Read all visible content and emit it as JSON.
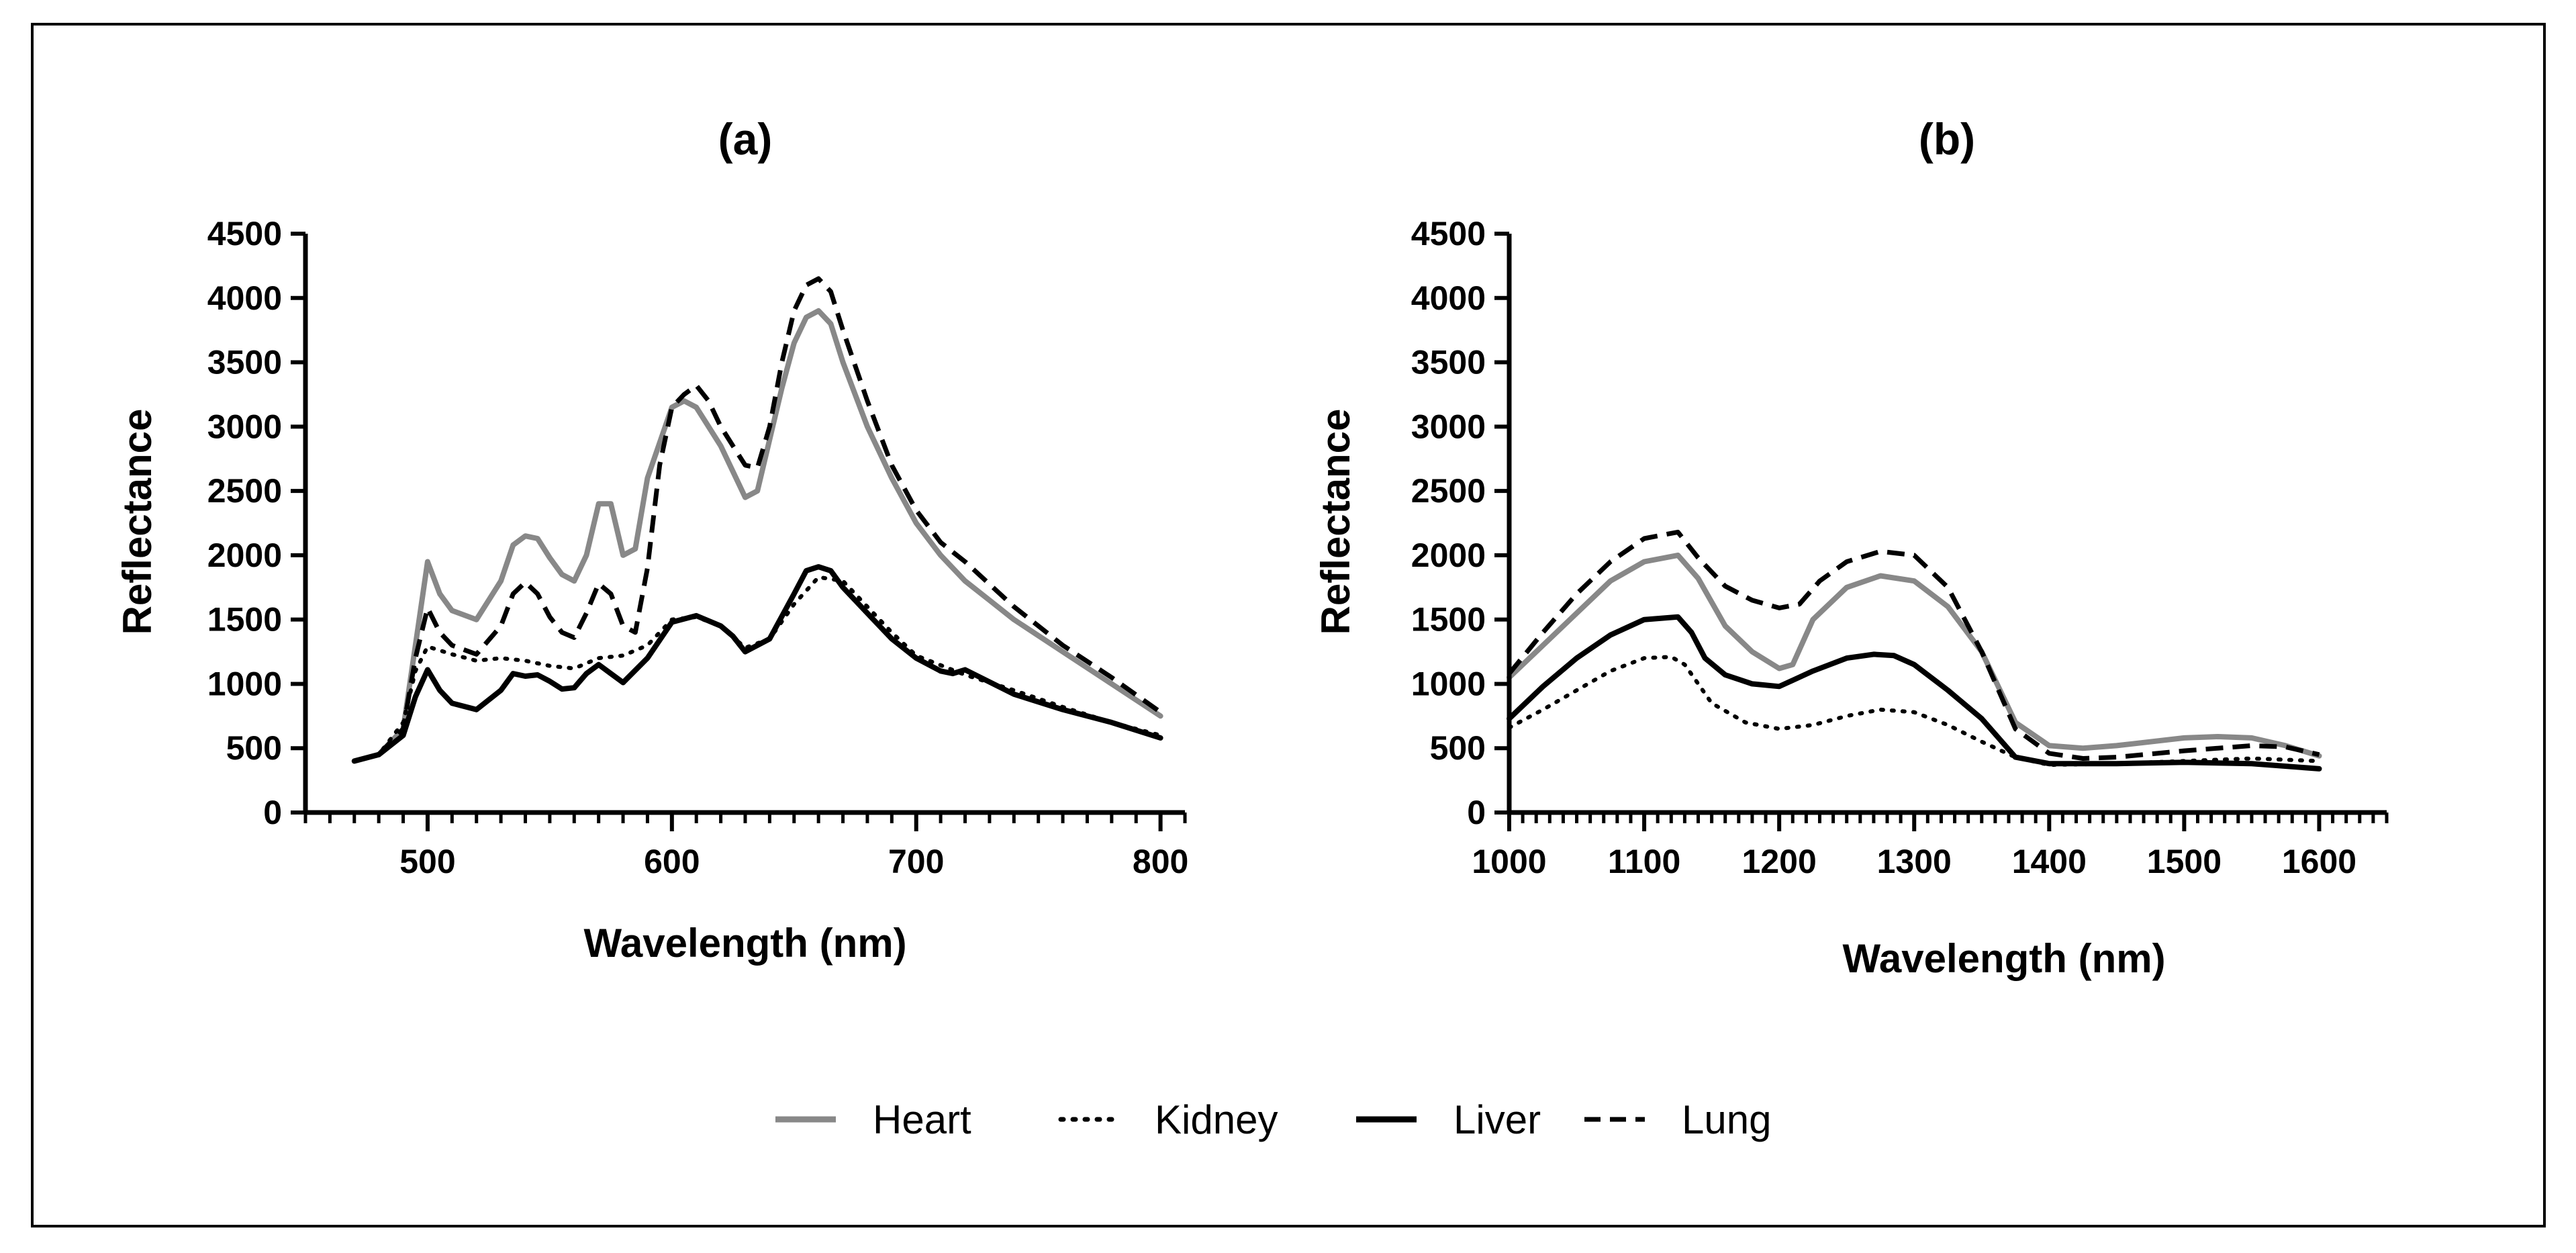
{
  "chart_data": [
    {
      "type": "line",
      "title": "(a)",
      "xlabel": "Wavelength (nm)",
      "ylabel": "Reflectance",
      "xlim": [
        450,
        810
      ],
      "ylim": [
        0,
        4500
      ],
      "xticks": [
        500,
        600,
        700,
        800
      ],
      "yticks": [
        0,
        500,
        1000,
        1500,
        2000,
        2500,
        3000,
        3500,
        4000,
        4500
      ],
      "grid": false,
      "series": [
        {
          "name": "Heart",
          "x": [
            470,
            480,
            490,
            495,
            500,
            505,
            510,
            520,
            530,
            535,
            540,
            545,
            550,
            555,
            560,
            565,
            570,
            575,
            580,
            585,
            590,
            600,
            605,
            610,
            615,
            620,
            625,
            630,
            635,
            640,
            645,
            650,
            655,
            660,
            665,
            670,
            680,
            690,
            700,
            710,
            720,
            730,
            740,
            760,
            780,
            800
          ],
          "y": [
            400,
            450,
            650,
            1300,
            1950,
            1700,
            1570,
            1500,
            1800,
            2080,
            2150,
            2130,
            1980,
            1850,
            1800,
            2000,
            2400,
            2400,
            2000,
            2050,
            2600,
            3150,
            3200,
            3150,
            3000,
            2850,
            2650,
            2450,
            2500,
            2900,
            3300,
            3650,
            3850,
            3900,
            3800,
            3500,
            3000,
            2600,
            2250,
            2000,
            1800,
            1650,
            1500,
            1250,
            1000,
            750
          ]
        },
        {
          "name": "Kidney",
          "x": [
            470,
            480,
            490,
            495,
            500,
            510,
            520,
            530,
            540,
            550,
            560,
            570,
            580,
            590,
            600,
            610,
            620,
            630,
            640,
            650,
            660,
            670,
            680,
            690,
            700,
            720,
            740,
            760,
            780,
            800
          ],
          "y": [
            400,
            450,
            700,
            1100,
            1290,
            1230,
            1180,
            1200,
            1180,
            1140,
            1120,
            1200,
            1220,
            1300,
            1500,
            1520,
            1450,
            1280,
            1350,
            1620,
            1830,
            1800,
            1600,
            1400,
            1220,
            1070,
            950,
            820,
            700,
            600
          ]
        },
        {
          "name": "Liver",
          "x": [
            470,
            480,
            490,
            495,
            500,
            505,
            510,
            520,
            530,
            535,
            540,
            545,
            550,
            555,
            560,
            565,
            570,
            575,
            580,
            590,
            600,
            610,
            620,
            625,
            630,
            640,
            650,
            655,
            660,
            665,
            670,
            680,
            690,
            700,
            710,
            715,
            720,
            740,
            760,
            780,
            800
          ],
          "y": [
            400,
            450,
            600,
            900,
            1110,
            950,
            850,
            800,
            950,
            1080,
            1060,
            1070,
            1020,
            960,
            970,
            1080,
            1150,
            1080,
            1010,
            1200,
            1480,
            1530,
            1450,
            1370,
            1250,
            1350,
            1700,
            1880,
            1910,
            1880,
            1750,
            1550,
            1350,
            1200,
            1100,
            1080,
            1110,
            920,
            800,
            700,
            580
          ]
        },
        {
          "name": "Lung",
          "x": [
            470,
            480,
            490,
            495,
            500,
            505,
            510,
            520,
            530,
            535,
            540,
            545,
            550,
            555,
            560,
            565,
            570,
            575,
            580,
            585,
            590,
            595,
            600,
            605,
            610,
            615,
            620,
            625,
            630,
            635,
            640,
            645,
            650,
            655,
            660,
            665,
            670,
            680,
            690,
            700,
            710,
            720,
            740,
            760,
            780,
            800
          ],
          "y": [
            400,
            450,
            650,
            1200,
            1590,
            1400,
            1300,
            1230,
            1450,
            1700,
            1790,
            1700,
            1520,
            1400,
            1360,
            1550,
            1780,
            1700,
            1450,
            1400,
            1900,
            2700,
            3150,
            3250,
            3320,
            3200,
            3000,
            2850,
            2700,
            2680,
            3000,
            3500,
            3900,
            4100,
            4150,
            4050,
            3750,
            3200,
            2700,
            2350,
            2100,
            1950,
            1600,
            1300,
            1050,
            780
          ]
        }
      ]
    },
    {
      "type": "line",
      "title": "(b)",
      "xlabel": "Wavelength (nm)",
      "ylabel": "Reflectance",
      "xlim": [
        1000,
        1650
      ],
      "ylim": [
        0,
        4500
      ],
      "xticks": [
        1000,
        1100,
        1200,
        1300,
        1400,
        1500,
        1600
      ],
      "yticks": [
        0,
        500,
        1000,
        1500,
        2000,
        2500,
        3000,
        3500,
        4000,
        4500
      ],
      "grid": false,
      "series": [
        {
          "name": "Heart",
          "x": [
            1000,
            1025,
            1050,
            1075,
            1100,
            1125,
            1140,
            1160,
            1180,
            1200,
            1210,
            1225,
            1250,
            1275,
            1300,
            1325,
            1350,
            1375,
            1400,
            1425,
            1450,
            1500,
            1525,
            1550,
            1575,
            1600
          ],
          "y": [
            1050,
            1300,
            1550,
            1800,
            1950,
            2000,
            1820,
            1450,
            1250,
            1120,
            1150,
            1500,
            1750,
            1840,
            1800,
            1600,
            1250,
            700,
            520,
            500,
            520,
            580,
            590,
            580,
            520,
            440
          ]
        },
        {
          "name": "Kidney",
          "x": [
            1000,
            1025,
            1050,
            1075,
            1100,
            1120,
            1130,
            1140,
            1150,
            1175,
            1200,
            1225,
            1250,
            1275,
            1300,
            1325,
            1350,
            1375,
            1400,
            1450,
            1500,
            1550,
            1600
          ],
          "y": [
            660,
            800,
            950,
            1100,
            1200,
            1210,
            1150,
            1000,
            850,
            700,
            650,
            680,
            750,
            800,
            780,
            680,
            550,
            430,
            370,
            380,
            400,
            420,
            400
          ]
        },
        {
          "name": "Liver",
          "x": [
            1000,
            1025,
            1050,
            1075,
            1100,
            1125,
            1135,
            1145,
            1160,
            1180,
            1200,
            1225,
            1250,
            1270,
            1285,
            1300,
            1325,
            1350,
            1375,
            1400,
            1450,
            1500,
            1550,
            1600
          ],
          "y": [
            730,
            980,
            1200,
            1380,
            1500,
            1520,
            1400,
            1200,
            1070,
            1000,
            980,
            1100,
            1200,
            1230,
            1220,
            1150,
            950,
            730,
            430,
            380,
            380,
            390,
            380,
            340
          ]
        },
        {
          "name": "Lung",
          "x": [
            1000,
            1025,
            1050,
            1075,
            1100,
            1125,
            1140,
            1160,
            1180,
            1200,
            1215,
            1230,
            1250,
            1275,
            1300,
            1325,
            1350,
            1375,
            1400,
            1425,
            1450,
            1500,
            1550,
            1575,
            1600
          ],
          "y": [
            1080,
            1400,
            1700,
            1950,
            2130,
            2180,
            1980,
            1760,
            1650,
            1590,
            1620,
            1800,
            1950,
            2030,
            2000,
            1750,
            1250,
            650,
            460,
            420,
            430,
            480,
            520,
            510,
            450
          ]
        }
      ]
    }
  ],
  "legend": {
    "placement": "bottom-center",
    "items": [
      {
        "label": "Heart",
        "color": "#888888",
        "dash": "solid"
      },
      {
        "label": "Kidney",
        "color": "#000000",
        "dash": "dotted"
      },
      {
        "label": "Liver",
        "color": "#000000",
        "dash": "solid"
      },
      {
        "label": "Lung",
        "color": "#000000",
        "dash": "dashed"
      }
    ]
  },
  "colors": {
    "heart": "#888888",
    "kidney": "#000000",
    "liver": "#000000",
    "lung": "#000000",
    "frame": "#000000"
  }
}
